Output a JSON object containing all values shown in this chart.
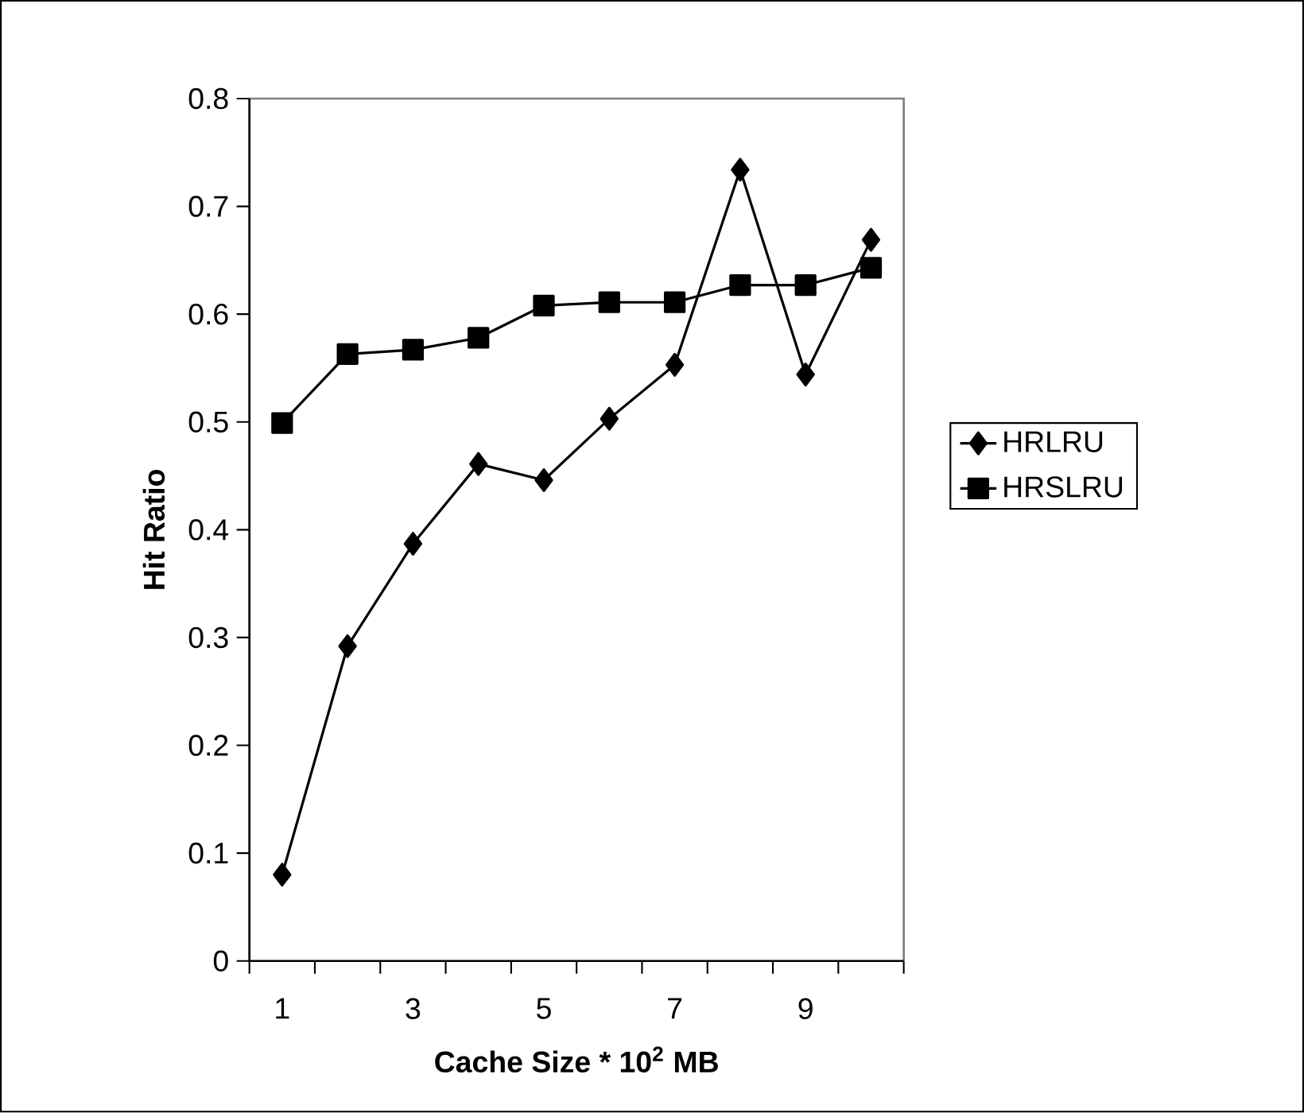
{
  "chart_data": {
    "type": "line",
    "xlabel": "Cache Size * 10$^{2}$ MB",
    "ylabel": "Hit Ratio",
    "categories": [
      "1",
      null,
      "3",
      null,
      "5",
      null,
      "7",
      null,
      "9",
      null
    ],
    "ylim": [
      0,
      0.8
    ],
    "yticks": [
      0,
      0.1,
      0.2,
      0.3,
      0.4,
      0.5,
      0.6,
      0.7,
      0.8
    ],
    "legend": "right",
    "grid": false,
    "series": [
      {
        "name": "HRLRU",
        "color": "#000000",
        "marker": "diamond",
        "values": [
          0.08,
          0.292,
          0.387,
          0.461,
          0.446,
          0.503,
          0.553,
          0.734,
          0.544,
          0.669
        ]
      },
      {
        "name": "HRSLRU",
        "color": "#000000",
        "marker": "square",
        "values": [
          0.499,
          0.563,
          0.567,
          0.578,
          0.608,
          0.611,
          0.611,
          0.627,
          0.627,
          0.643
        ]
      }
    ]
  }
}
